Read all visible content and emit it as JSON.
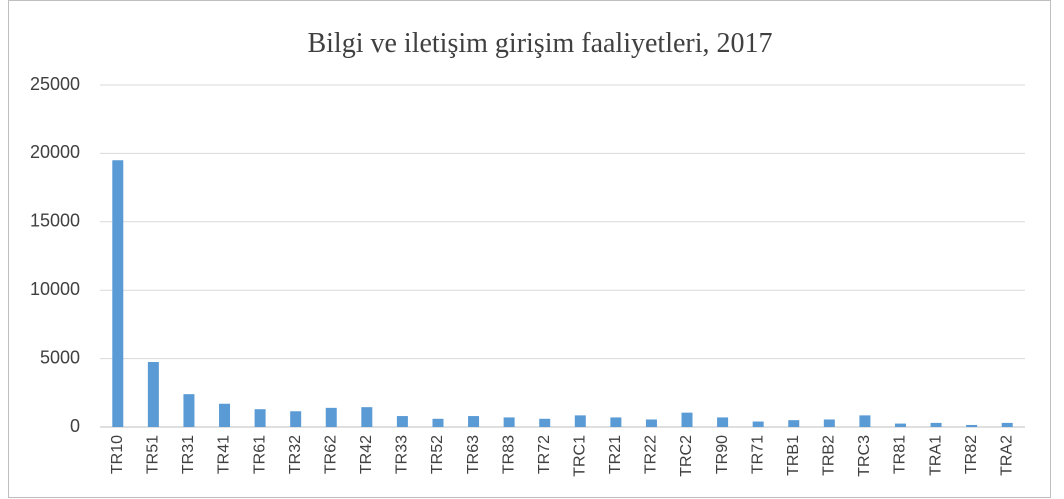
{
  "chart_data": {
    "type": "bar",
    "title": "Bilgi ve iletişim girişim faaliyetleri, 2017",
    "categories": [
      "TR10",
      "TR51",
      "TR31",
      "TR41",
      "TR61",
      "TR32",
      "TR62",
      "TR42",
      "TR33",
      "TR52",
      "TR63",
      "TR83",
      "TR72",
      "TRC1",
      "TR21",
      "TR22",
      "TRC2",
      "TR90",
      "TR71",
      "TRB1",
      "TRB2",
      "TRC3",
      "TR81",
      "TRA1",
      "TR82",
      "TRA2"
    ],
    "values": [
      19500,
      4750,
      2400,
      1700,
      1300,
      1150,
      1400,
      1450,
      800,
      600,
      800,
      700,
      600,
      850,
      700,
      550,
      1050,
      700,
      400,
      500,
      550,
      850,
      250,
      300,
      150,
      300
    ],
    "color": "#5b9bd5",
    "ylim": [
      0,
      25000
    ],
    "yticks": [
      0,
      5000,
      10000,
      15000,
      20000,
      25000
    ],
    "grid": true
  }
}
